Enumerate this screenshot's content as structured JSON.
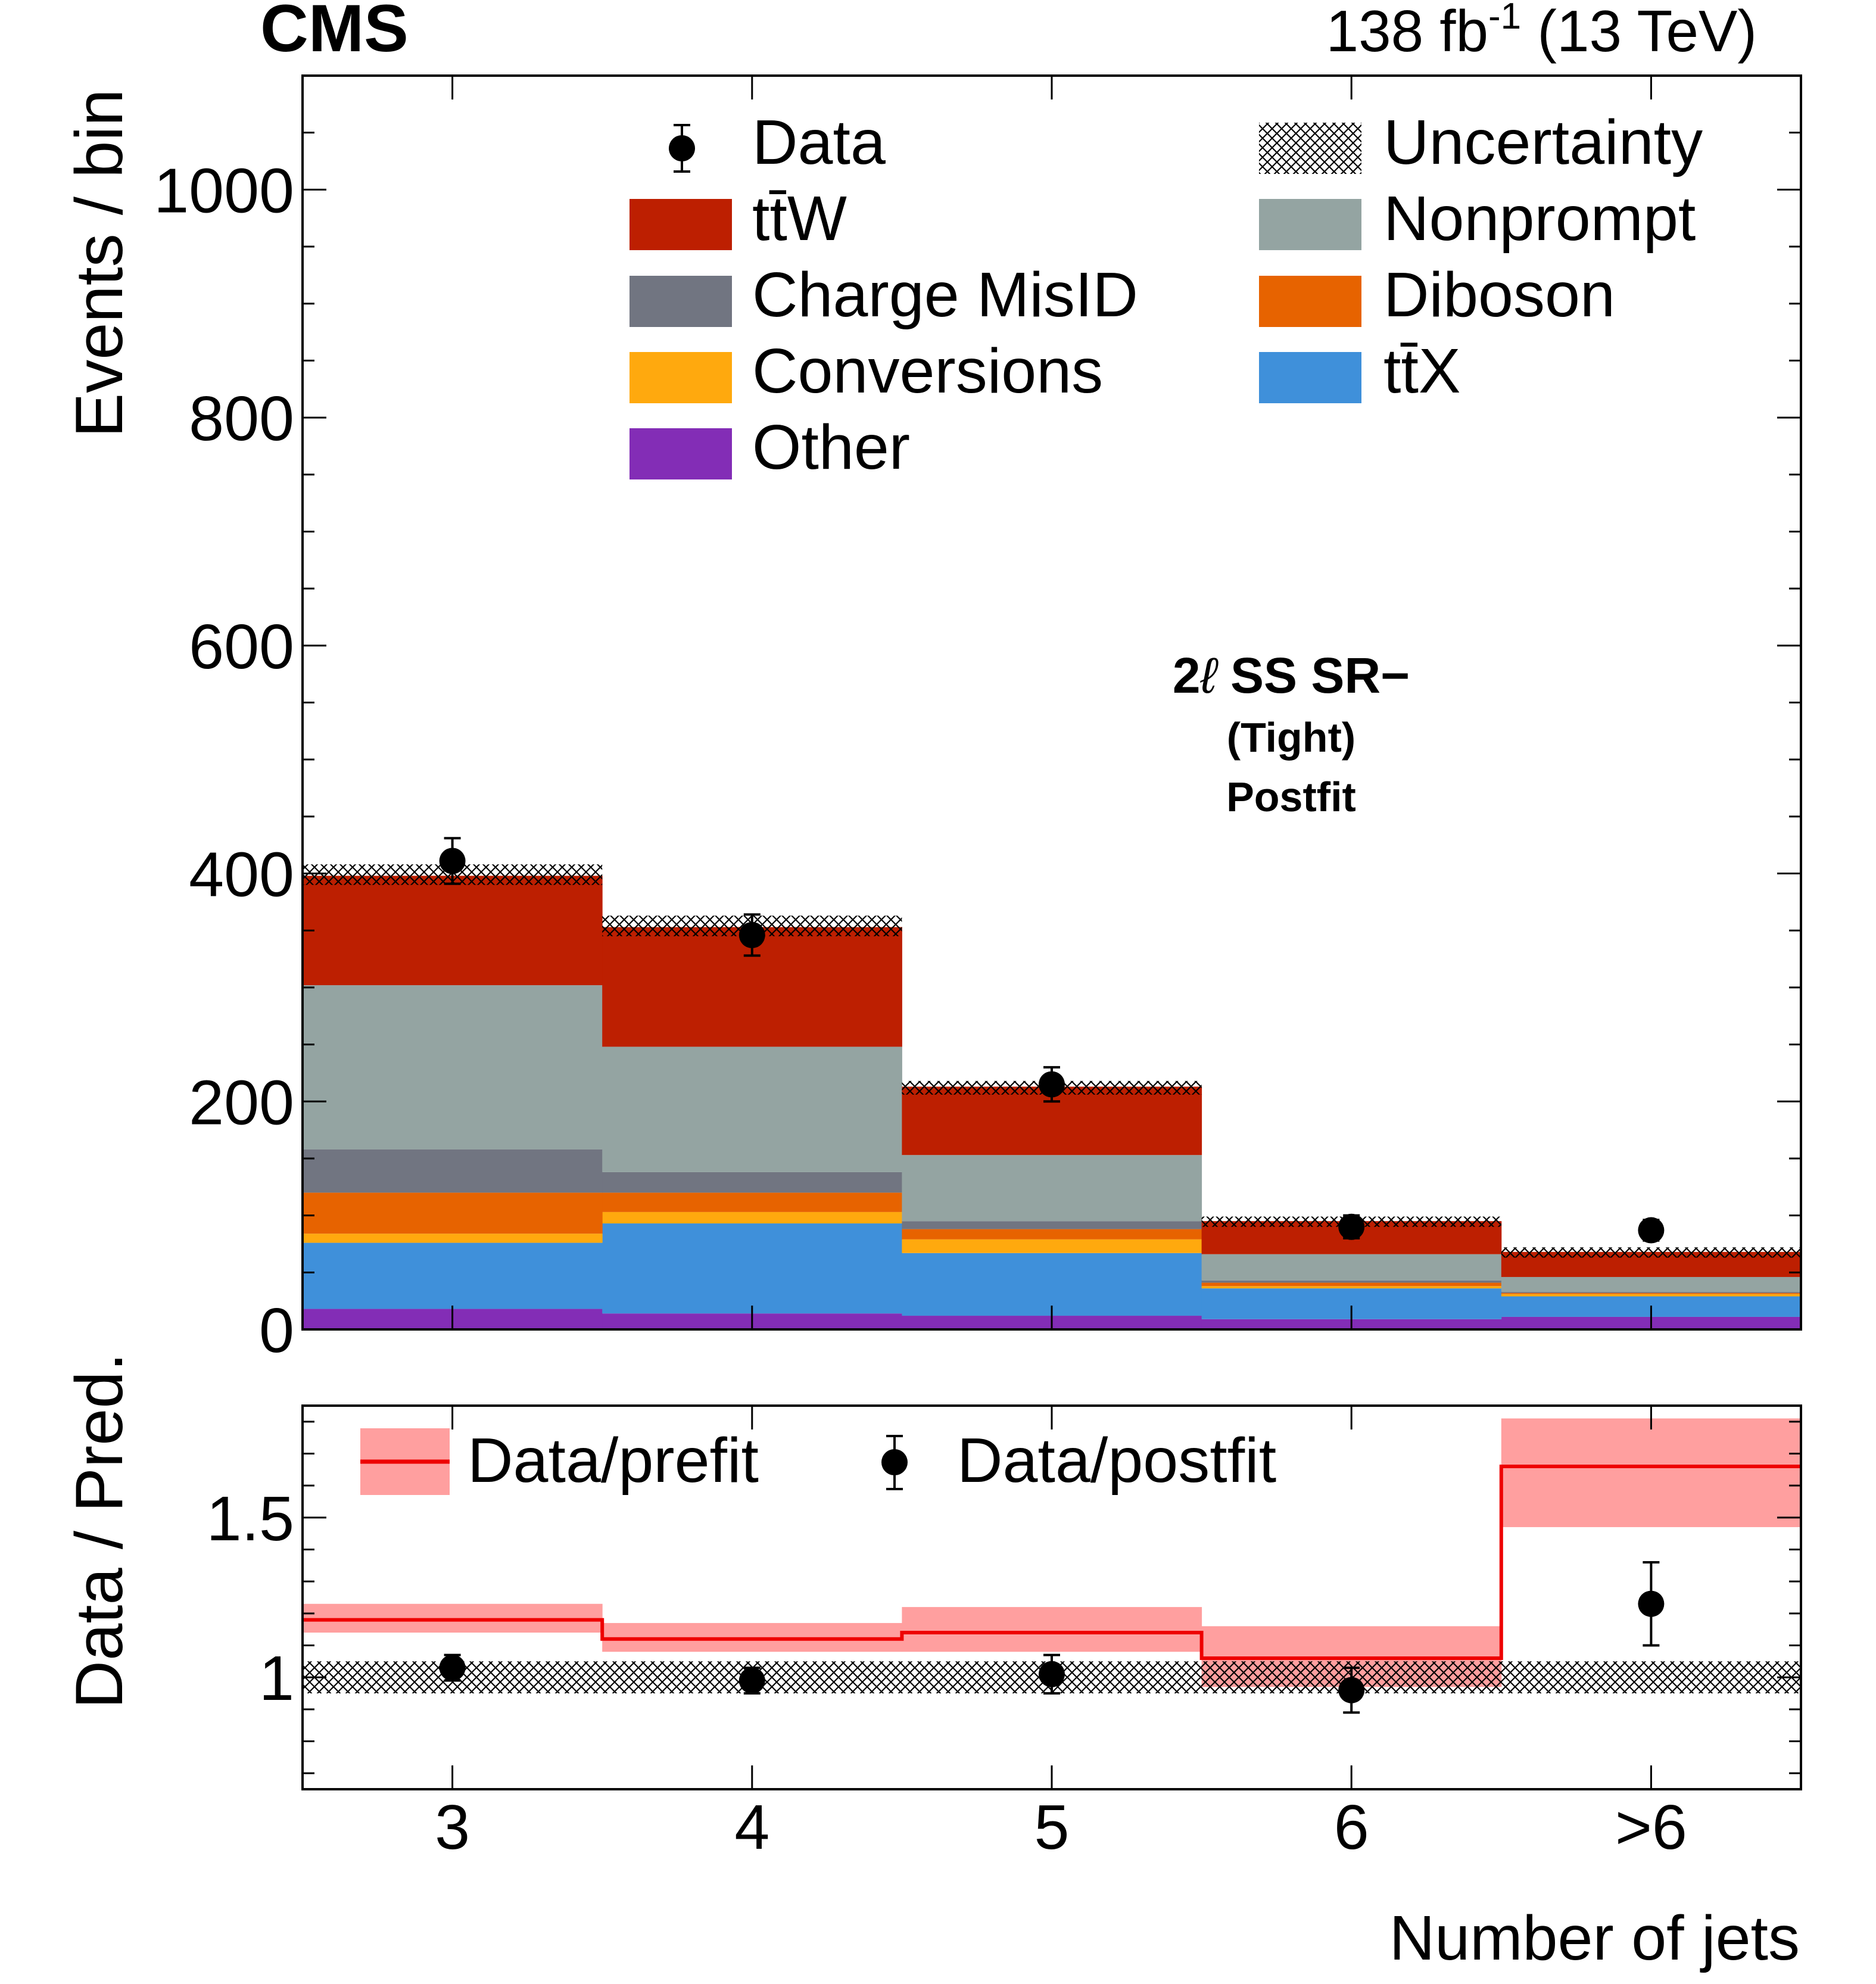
{
  "header": {
    "experiment": "CMS",
    "lumi_value": "138 fb",
    "lumi_exp": "-1",
    "energy": " (13 TeV)"
  },
  "annotation": {
    "line1_prefix": "2",
    "line1_lepton": "ℓ",
    "line1_suffix": " SS SR−",
    "line2": "(Tight)",
    "line3": "Postfit"
  },
  "legend": {
    "data": "Data",
    "uncertainty": "Uncertainty",
    "ttw": "tt̄W",
    "nonprompt": "Nonprompt",
    "chargemisid": "Charge MisID",
    "diboson": "Diboson",
    "conversions": "Conversions",
    "ttx": "tt̄X",
    "other": "Other",
    "ratio_prefit": "Data/prefit",
    "ratio_postfit": "Data/postfit"
  },
  "colors": {
    "ttw": "#bd1f01",
    "nonprompt": "#94a4a2",
    "chargemisid": "#717581",
    "diboson": "#e76300",
    "conversions": "#ffa90e",
    "ttx": "#3f90da",
    "other": "#832db6",
    "prefit_band": "#ff9f9f",
    "prefit_line": "#ee0000"
  },
  "chart_data": {
    "type": "bar",
    "stacked": true,
    "title": "",
    "xlabel": "Number of jets",
    "ylabel": "Events / bin",
    "ratio_ylabel": "Data / Pred.",
    "categories": [
      "3",
      "4",
      "5",
      "6",
      ">6"
    ],
    "ylim": [
      0,
      1100
    ],
    "yticks": [
      0,
      200,
      400,
      600,
      800,
      1000
    ],
    "ytick_labels": [
      "0",
      "200",
      "400",
      "600",
      "800",
      "1000"
    ],
    "series": [
      {
        "name": "Other",
        "key": "other",
        "values": [
          18,
          14,
          12,
          9,
          11
        ]
      },
      {
        "name": "tt̄X",
        "key": "ttx",
        "values": [
          58,
          79,
          55,
          27,
          18
        ]
      },
      {
        "name": "Conversions",
        "key": "conversions",
        "values": [
          8,
          10,
          12,
          2,
          2
        ]
      },
      {
        "name": "Diboson",
        "key": "diboson",
        "values": [
          36,
          17,
          9,
          3,
          1
        ]
      },
      {
        "name": "Charge MisID",
        "key": "chargemisid",
        "values": [
          38,
          18,
          7,
          2,
          1
        ]
      },
      {
        "name": "Nonprompt",
        "key": "nonprompt",
        "values": [
          144,
          110,
          58,
          23,
          13
        ]
      },
      {
        "name": "tt̄W",
        "key": "ttw",
        "values": [
          96,
          105,
          60,
          29,
          22
        ]
      }
    ],
    "uncertainty": [
      [
        390,
        408
      ],
      [
        345,
        363
      ],
      [
        206,
        218
      ],
      [
        90,
        99
      ],
      [
        63,
        72
      ]
    ],
    "data": {
      "values": [
        411,
        346,
        215,
        90,
        87
      ],
      "errors": [
        20,
        18,
        15,
        10,
        9
      ]
    },
    "ratio": {
      "ylim": [
        0.65,
        1.85
      ],
      "yticks": [
        1.0,
        1.5
      ],
      "ytick_labels": [
        "1",
        "1.5"
      ],
      "prefit_values": [
        1.18,
        1.12,
        1.14,
        1.06,
        1.66
      ],
      "prefit_band": [
        [
          1.14,
          1.23
        ],
        [
          1.08,
          1.17
        ],
        [
          1.08,
          1.22
        ],
        [
          0.97,
          1.16
        ],
        [
          1.47,
          1.81
        ]
      ],
      "uncertainty_band": [
        0.95,
        1.05
      ],
      "postfit_values": [
        1.03,
        0.99,
        1.01,
        0.96,
        1.23
      ],
      "postfit_errors": [
        0.04,
        0.04,
        0.06,
        0.07,
        0.13
      ]
    }
  }
}
